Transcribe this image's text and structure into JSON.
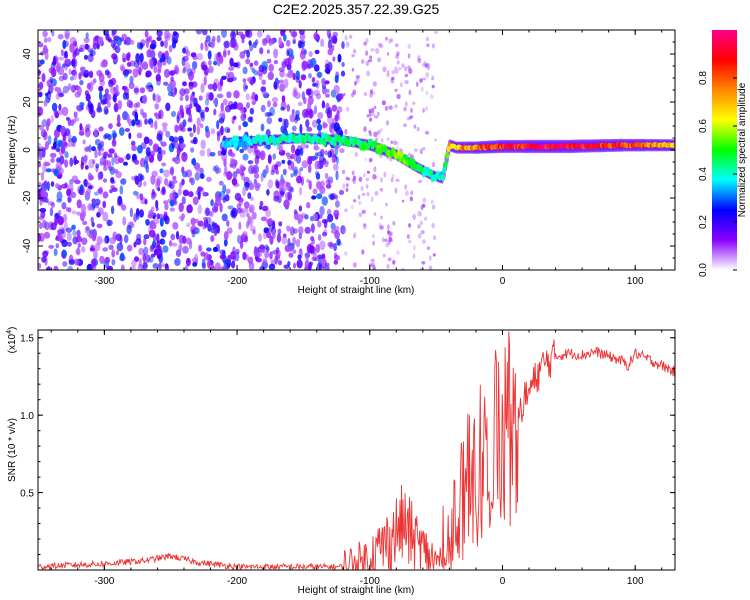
{
  "title": "C2E2.2025.357.22.39.G25",
  "chart_data": [
    {
      "type": "heatmap",
      "xlabel": "Height of straight line (km)",
      "ylabel": "Frequency (Hz)",
      "xlim": [
        -350,
        130
      ],
      "ylim": [
        -50,
        50
      ],
      "xticks": [
        -300,
        -200,
        -100,
        0,
        100
      ],
      "yticks": [
        -40,
        -20,
        0,
        20,
        40
      ],
      "colorbar": {
        "label": "Normalized spectral amplitude",
        "range": [
          0,
          1
        ],
        "ticks": [
          "0.0",
          "0.2",
          "0.4",
          "0.6",
          "0.8"
        ],
        "colors": [
          "#ffffff",
          "#8800ff",
          "#0000ff",
          "#00ffff",
          "#00ff00",
          "#ffff00",
          "#ff8800",
          "#ff0000",
          "#ff0088"
        ]
      },
      "ridge": {
        "x": [
          -210,
          -180,
          -150,
          -120,
          -100,
          -80,
          -65,
          -55,
          -45,
          -40,
          -35,
          -20,
          0,
          50,
          90,
          130
        ],
        "freq": [
          3,
          4,
          5,
          4,
          2,
          -2,
          -7,
          -10,
          -12,
          2,
          1,
          1,
          1.5,
          1.5,
          2,
          2
        ],
        "amplitude": [
          0.35,
          0.4,
          0.45,
          0.45,
          0.5,
          0.55,
          0.5,
          0.4,
          0.4,
          0.7,
          0.7,
          0.8,
          0.9,
          0.95,
          0.85,
          0.7
        ]
      }
    },
    {
      "type": "line",
      "xlabel": "Height of straight line (km)",
      "ylabel": "SNR (10 * v/v)",
      "yscale_label": "(x10",
      "yscale_exp": "4",
      "xlim": [
        -350,
        130
      ],
      "ylim": [
        0,
        1.55
      ],
      "xticks": [
        -300,
        -200,
        -100,
        0,
        100
      ],
      "yticks": [
        "0.5",
        "1.0",
        "1.5"
      ],
      "color": "#ee3333",
      "x": [
        -350,
        -330,
        -300,
        -270,
        -250,
        -230,
        -200,
        -150,
        -120,
        -105,
        -95,
        -85,
        -75,
        -65,
        -55,
        -48,
        -40,
        -35,
        -30,
        -25,
        -20,
        -15,
        -10,
        -5,
        0,
        5,
        10,
        20,
        30,
        40,
        50,
        60,
        70,
        80,
        90,
        95,
        100,
        110,
        120,
        130
      ],
      "y": [
        0.02,
        0.03,
        0.04,
        0.06,
        0.09,
        0.05,
        0.02,
        0.02,
        0.02,
        0.05,
        0.12,
        0.2,
        0.3,
        0.18,
        0.08,
        0.04,
        0.25,
        0.35,
        0.45,
        0.6,
        0.7,
        0.78,
        0.8,
        0.95,
        0.88,
        1.05,
        1.0,
        1.15,
        1.32,
        1.38,
        1.4,
        1.39,
        1.41,
        1.38,
        1.35,
        1.32,
        1.4,
        1.36,
        1.32,
        1.28
      ]
    }
  ]
}
